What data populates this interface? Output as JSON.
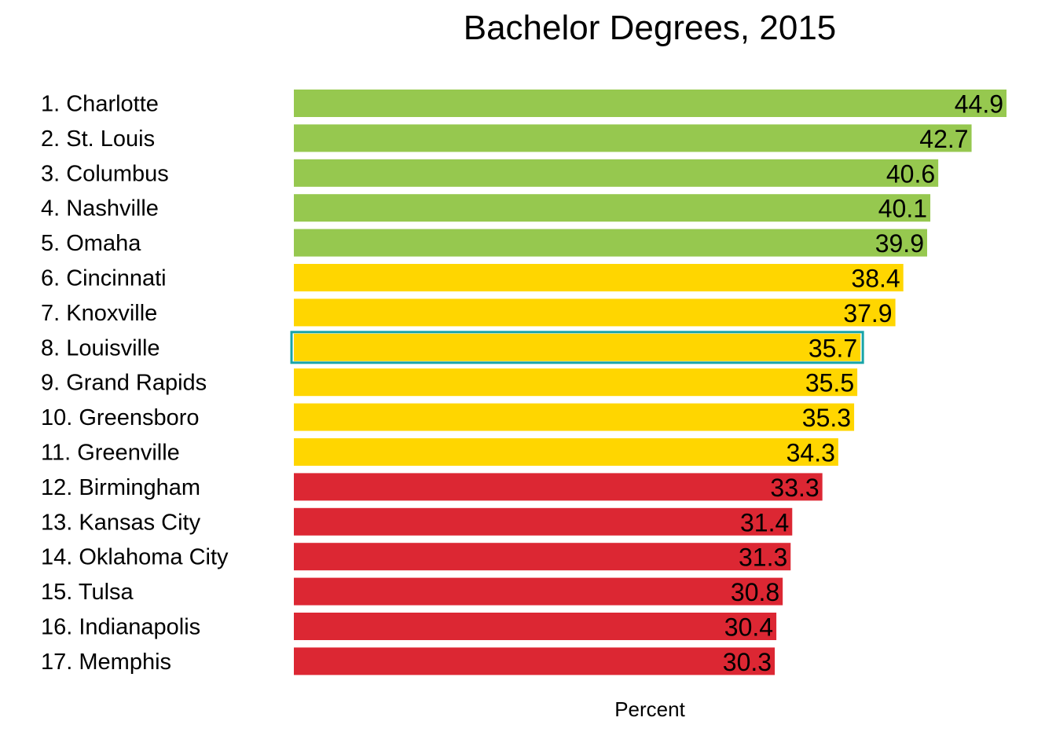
{
  "chart_data": {
    "type": "bar",
    "orientation": "horizontal",
    "title": "Bachelor Degrees, 2015",
    "xlabel": "Percent",
    "ylabel": "",
    "xlim": [
      0,
      44.9
    ],
    "grid": false,
    "legend": "none",
    "highlight_index": 7,
    "categories": [
      "1. Charlotte",
      "2. St. Louis",
      "3. Columbus",
      "4. Nashville",
      "5. Omaha",
      "6. Cincinnati",
      "7. Knoxville",
      "8. Louisville",
      "9. Grand Rapids",
      "10. Greensboro",
      "11. Greenville",
      "12. Birmingham",
      "13. Kansas City",
      "14. Oklahoma City",
      "15. Tulsa",
      "16. Indianapolis",
      "17. Memphis"
    ],
    "values": [
      44.9,
      42.7,
      40.6,
      40.1,
      39.9,
      38.4,
      37.9,
      35.7,
      35.5,
      35.3,
      34.3,
      33.3,
      31.4,
      31.3,
      30.8,
      30.4,
      30.3
    ],
    "value_labels": [
      "44.9",
      "42.7",
      "40.6",
      "40.1",
      "39.9",
      "38.4",
      "37.9",
      "35.7",
      "35.5",
      "35.3",
      "34.3",
      "33.3",
      "31.4",
      "31.3",
      "30.8",
      "30.4",
      "30.3"
    ],
    "tiers": [
      "top",
      "top",
      "top",
      "top",
      "top",
      "mid",
      "mid",
      "mid",
      "mid",
      "mid",
      "mid",
      "low",
      "low",
      "low",
      "low",
      "low",
      "low"
    ]
  },
  "colors": {
    "top": "#96c84f",
    "mid": "#ffd600",
    "low": "#dc2733",
    "highlight": "#18a4a8",
    "text": "#000000"
  }
}
